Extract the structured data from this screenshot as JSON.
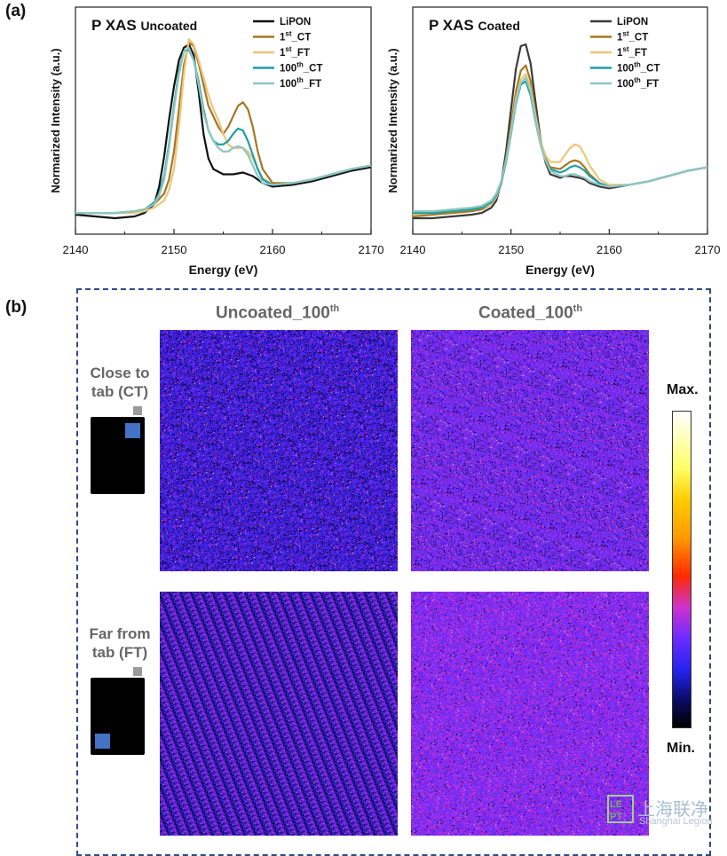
{
  "panels": {
    "a_label": "(a)",
    "b_label": "(b)"
  },
  "chart_data": [
    {
      "type": "line",
      "title": "P XAS",
      "subtitle": "Uncoated",
      "xlabel": "Energy (eV)",
      "ylabel": "Normarized Intensity (a.u.)",
      "xlim": [
        2140,
        2170
      ],
      "xticks": [
        "2140",
        "2150",
        "2160",
        "2170"
      ],
      "yticks": [],
      "grid": false,
      "legend": "top-right",
      "series": [
        {
          "name": "LiPON",
          "color": "#111111",
          "x": [
            2140,
            2142,
            2144,
            2146,
            2147,
            2148,
            2148.5,
            2149,
            2149.5,
            2150,
            2150.5,
            2151,
            2151.5,
            2152,
            2152.5,
            2153,
            2153.5,
            2154,
            2155,
            2156,
            2157,
            2158,
            2159,
            2160,
            2162,
            2164,
            2166,
            2168,
            2170
          ],
          "y": [
            0.02,
            0.01,
            0.0,
            0.01,
            0.03,
            0.08,
            0.18,
            0.35,
            0.56,
            0.75,
            0.9,
            0.97,
            0.99,
            0.93,
            0.72,
            0.48,
            0.34,
            0.28,
            0.25,
            0.25,
            0.26,
            0.24,
            0.2,
            0.18,
            0.19,
            0.21,
            0.24,
            0.27,
            0.29
          ]
        },
        {
          "name": "1st_CT",
          "sup": "st",
          "label_pre": "1",
          "label_post": "_CT",
          "color": "#a57722",
          "x": [
            2140,
            2142,
            2144,
            2146,
            2147,
            2148,
            2149,
            2149.5,
            2150,
            2150.5,
            2151,
            2151.5,
            2152,
            2152.5,
            2153,
            2153.5,
            2154,
            2154.5,
            2155,
            2155.5,
            2156,
            2156.5,
            2157,
            2157.5,
            2158,
            2158.5,
            2159,
            2160,
            2162,
            2164,
            2166,
            2168,
            2170
          ],
          "y": [
            0.03,
            0.03,
            0.03,
            0.04,
            0.05,
            0.08,
            0.14,
            0.22,
            0.38,
            0.62,
            0.87,
            1.0,
            0.98,
            0.88,
            0.76,
            0.64,
            0.58,
            0.52,
            0.48,
            0.52,
            0.58,
            0.64,
            0.66,
            0.62,
            0.52,
            0.38,
            0.28,
            0.2,
            0.2,
            0.22,
            0.25,
            0.28,
            0.3
          ]
        },
        {
          "name": "1st_FT",
          "sup": "st",
          "label_pre": "1",
          "label_post": "_FT",
          "color": "#eec67a",
          "x": [
            2140,
            2142,
            2144,
            2146,
            2147,
            2148,
            2149,
            2149.5,
            2150,
            2150.5,
            2151,
            2151.5,
            2152,
            2152.5,
            2153,
            2153.5,
            2154,
            2154.5,
            2155,
            2155.5,
            2156,
            2156.5,
            2157,
            2157.5,
            2158,
            2158.5,
            2159,
            2160,
            2162,
            2164,
            2166,
            2168,
            2170
          ],
          "y": [
            0.03,
            0.03,
            0.03,
            0.03,
            0.04,
            0.06,
            0.1,
            0.16,
            0.28,
            0.52,
            0.82,
            1.02,
            0.99,
            0.9,
            0.8,
            0.7,
            0.62,
            0.56,
            0.48,
            0.42,
            0.4,
            0.4,
            0.4,
            0.38,
            0.34,
            0.28,
            0.23,
            0.19,
            0.2,
            0.22,
            0.25,
            0.28,
            0.3
          ]
        },
        {
          "name": "100th_CT",
          "sup": "th",
          "label_pre": "100",
          "label_post": "_CT",
          "color": "#1f9ea3",
          "x": [
            2140,
            2142,
            2144,
            2146,
            2147,
            2148,
            2148.5,
            2149,
            2149.5,
            2150,
            2150.5,
            2151,
            2151.5,
            2152,
            2152.5,
            2153,
            2153.5,
            2154,
            2154.5,
            2155,
            2155.5,
            2156,
            2156.5,
            2157,
            2157.5,
            2158,
            2158.5,
            2159,
            2160,
            2162,
            2164,
            2166,
            2168,
            2170
          ],
          "y": [
            0.03,
            0.03,
            0.03,
            0.04,
            0.05,
            0.09,
            0.14,
            0.24,
            0.42,
            0.64,
            0.84,
            0.95,
            0.96,
            0.9,
            0.78,
            0.62,
            0.5,
            0.44,
            0.42,
            0.42,
            0.44,
            0.48,
            0.51,
            0.5,
            0.44,
            0.36,
            0.28,
            0.22,
            0.19,
            0.2,
            0.22,
            0.25,
            0.28,
            0.3
          ]
        },
        {
          "name": "100th_FT",
          "sup": "th",
          "label_pre": "100",
          "label_post": "_FT",
          "color": "#8fc6c2",
          "x": [
            2140,
            2142,
            2144,
            2146,
            2147,
            2148,
            2148.5,
            2149,
            2149.5,
            2150,
            2150.5,
            2151,
            2151.5,
            2152,
            2152.5,
            2153,
            2153.5,
            2154,
            2154.5,
            2155,
            2155.5,
            2156,
            2156.5,
            2157,
            2157.5,
            2158,
            2158.5,
            2159,
            2160,
            2162,
            2164,
            2166,
            2168,
            2170
          ],
          "y": [
            0.03,
            0.03,
            0.03,
            0.04,
            0.05,
            0.08,
            0.13,
            0.22,
            0.4,
            0.62,
            0.82,
            0.95,
            0.97,
            0.9,
            0.76,
            0.6,
            0.5,
            0.44,
            0.4,
            0.38,
            0.38,
            0.4,
            0.41,
            0.4,
            0.36,
            0.3,
            0.24,
            0.2,
            0.19,
            0.2,
            0.22,
            0.25,
            0.28,
            0.3
          ]
        }
      ]
    },
    {
      "type": "line",
      "title": "P XAS",
      "subtitle": "Coated",
      "xlabel": "Energy (eV)",
      "ylabel": "Normarized Intensity (a.u.)",
      "xlim": [
        2140,
        2170
      ],
      "xticks": [
        "2140",
        "2150",
        "2160",
        "2170"
      ],
      "yticks": [],
      "grid": false,
      "legend": "top-right",
      "series": [
        {
          "name": "LiPON",
          "color": "#3b3b3b",
          "x": [
            2140,
            2142,
            2144,
            2146,
            2147,
            2148,
            2148.5,
            2149,
            2149.5,
            2150,
            2150.5,
            2151,
            2151.5,
            2152,
            2152.5,
            2153,
            2153.5,
            2154,
            2155,
            2155.5,
            2156,
            2157,
            2157.5,
            2158,
            2159,
            2160,
            2162,
            2164,
            2166,
            2168,
            2170
          ],
          "y": [
            0.0,
            0.0,
            0.01,
            0.02,
            0.03,
            0.06,
            0.1,
            0.2,
            0.38,
            0.62,
            0.85,
            0.98,
            0.99,
            0.88,
            0.66,
            0.45,
            0.32,
            0.25,
            0.23,
            0.24,
            0.24,
            0.23,
            0.22,
            0.2,
            0.18,
            0.17,
            0.19,
            0.21,
            0.24,
            0.27,
            0.29
          ]
        },
        {
          "name": "1st_CT",
          "sup": "st",
          "label_pre": "1",
          "label_post": "_CT",
          "color": "#a57722",
          "x": [
            2140,
            2142,
            2144,
            2146,
            2147,
            2148,
            2148.5,
            2149,
            2149.5,
            2150,
            2150.5,
            2151,
            2151.5,
            2152,
            2152.5,
            2153,
            2153.5,
            2154,
            2155,
            2155.5,
            2156,
            2156.5,
            2157,
            2157.5,
            2158,
            2159,
            2160,
            2162,
            2164,
            2166,
            2168,
            2170
          ],
          "y": [
            0.01,
            0.02,
            0.03,
            0.04,
            0.05,
            0.08,
            0.12,
            0.2,
            0.34,
            0.53,
            0.72,
            0.84,
            0.87,
            0.78,
            0.6,
            0.44,
            0.34,
            0.29,
            0.28,
            0.3,
            0.32,
            0.33,
            0.32,
            0.29,
            0.25,
            0.2,
            0.18,
            0.19,
            0.21,
            0.24,
            0.27,
            0.29
          ]
        },
        {
          "name": "1st_FT",
          "sup": "st",
          "label_pre": "1",
          "label_post": "_FT",
          "color": "#eec67a",
          "x": [
            2140,
            2142,
            2144,
            2146,
            2147,
            2148,
            2148.5,
            2149,
            2149.5,
            2150,
            2150.5,
            2151,
            2151.5,
            2152,
            2152.5,
            2153,
            2153.5,
            2154,
            2155,
            2155.5,
            2156,
            2156.5,
            2157,
            2157.5,
            2158,
            2159,
            2160,
            2162,
            2164,
            2166,
            2168,
            2170
          ],
          "y": [
            0.02,
            0.03,
            0.04,
            0.05,
            0.06,
            0.08,
            0.12,
            0.19,
            0.32,
            0.5,
            0.68,
            0.79,
            0.82,
            0.74,
            0.58,
            0.44,
            0.36,
            0.32,
            0.32,
            0.36,
            0.4,
            0.42,
            0.41,
            0.36,
            0.3,
            0.22,
            0.19,
            0.19,
            0.21,
            0.24,
            0.27,
            0.29
          ]
        },
        {
          "name": "100th_CT",
          "sup": "th",
          "label_pre": "100",
          "label_post": "_CT",
          "color": "#1f9ea3",
          "x": [
            2140,
            2142,
            2144,
            2146,
            2147,
            2148,
            2148.5,
            2149,
            2149.5,
            2150,
            2150.5,
            2151,
            2151.5,
            2152,
            2152.5,
            2153,
            2153.5,
            2154,
            2155,
            2155.5,
            2156,
            2156.5,
            2157,
            2157.5,
            2158,
            2159,
            2160,
            2162,
            2164,
            2166,
            2168,
            2170
          ],
          "y": [
            0.03,
            0.03,
            0.04,
            0.05,
            0.06,
            0.09,
            0.13,
            0.2,
            0.32,
            0.48,
            0.65,
            0.76,
            0.78,
            0.7,
            0.55,
            0.42,
            0.33,
            0.28,
            0.26,
            0.27,
            0.29,
            0.3,
            0.29,
            0.27,
            0.24,
            0.2,
            0.18,
            0.19,
            0.21,
            0.24,
            0.27,
            0.29
          ]
        },
        {
          "name": "100th_FT",
          "sup": "th",
          "label_pre": "100",
          "label_post": "_FT",
          "color": "#8fc6c2",
          "x": [
            2140,
            2142,
            2144,
            2146,
            2147,
            2148,
            2148.5,
            2149,
            2149.5,
            2150,
            2150.5,
            2151,
            2151.5,
            2152,
            2152.5,
            2153,
            2153.5,
            2154,
            2155,
            2155.5,
            2156,
            2156.5,
            2157,
            2157.5,
            2158,
            2159,
            2160,
            2162,
            2164,
            2166,
            2168,
            2170
          ],
          "y": [
            0.04,
            0.04,
            0.05,
            0.06,
            0.07,
            0.1,
            0.14,
            0.21,
            0.33,
            0.49,
            0.66,
            0.77,
            0.8,
            0.72,
            0.56,
            0.42,
            0.33,
            0.27,
            0.24,
            0.24,
            0.25,
            0.25,
            0.24,
            0.23,
            0.21,
            0.19,
            0.18,
            0.19,
            0.21,
            0.24,
            0.27,
            0.29
          ]
        }
      ]
    }
  ],
  "maps": {
    "column_titles": [
      "Uncoated_100th",
      "Coated_100th"
    ],
    "col1": {
      "pre": "Uncoated_100",
      "sup": "th"
    },
    "col2": {
      "pre": "Coated_100",
      "sup": "th"
    },
    "row1": {
      "line1": "Close to",
      "line2": "tab (CT)"
    },
    "row2": {
      "line1": "Far from",
      "line2": "tab (FT)"
    },
    "colorbar": {
      "max_label": "Max.",
      "min_label": "Min."
    }
  },
  "watermark": {
    "text": "上海联净",
    "sub": "Shanghai Legion",
    "logo": "LEPT"
  }
}
